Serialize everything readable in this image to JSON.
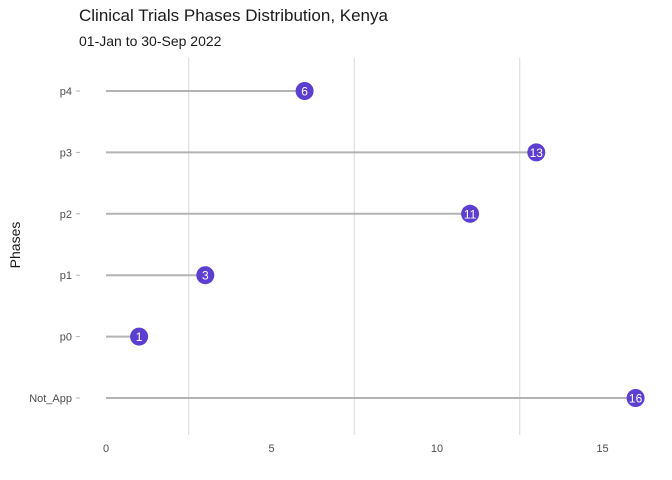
{
  "chart_data": {
    "type": "lollipop",
    "title": "Clinical Trials Phases Distribution, Kenya",
    "subtitle": "01-Jan to 30-Sep 2022",
    "xlabel": "",
    "ylabel": "Phases",
    "categories": [
      "p4",
      "p3",
      "p2",
      "p1",
      "p0",
      "Not_App"
    ],
    "values": [
      6,
      13,
      11,
      3,
      1,
      16
    ],
    "xlim": [
      0,
      16
    ],
    "xticks": [
      0,
      5,
      10,
      15
    ],
    "orientation": "horizontal",
    "grid": "vertical major and minor",
    "legend": "none",
    "point_color": "#5c3fd1",
    "stem_color": "#b3b3b3",
    "grid_color": "#d9d9d9"
  }
}
